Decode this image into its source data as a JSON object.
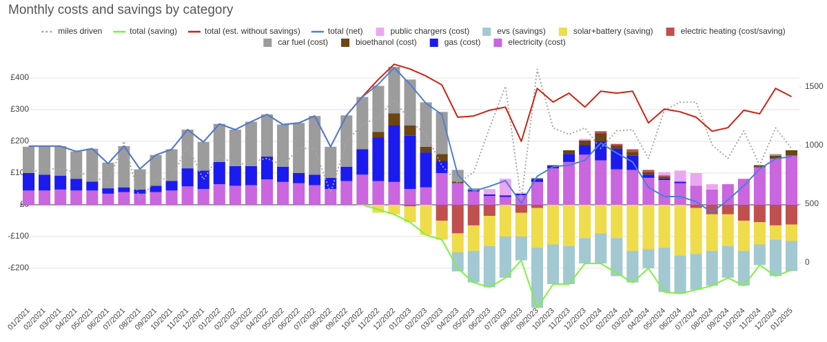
{
  "chart_data": {
    "type": "combo",
    "title": "Monthly costs and savings by category",
    "categories": [
      "01/2021",
      "02/2021",
      "03/2021",
      "04/2021",
      "05/2021",
      "06/2021",
      "07/2021",
      "08/2021",
      "09/2021",
      "10/2021",
      "11/2021",
      "12/2021",
      "01/2022",
      "02/2022",
      "03/2022",
      "04/2022",
      "05/2022",
      "06/2022",
      "07/2022",
      "08/2022",
      "09/2022",
      "10/2022",
      "11/2022",
      "12/2022",
      "01/2023",
      "02/2023",
      "03/2023",
      "04/2023",
      "05/2023",
      "06/2023",
      "07/2023",
      "08/2023",
      "09/2023",
      "10/2023",
      "11/2023",
      "12/2023",
      "01/2024",
      "02/2024",
      "03/2024",
      "04/2024",
      "05/2024",
      "06/2024",
      "07/2024",
      "08/2024",
      "09/2024",
      "10/2024",
      "11/2024",
      "12/2024",
      "01/2025"
    ],
    "ylim": [
      -300,
      450
    ],
    "yticks": [
      {
        "value": -200,
        "label": "-£200"
      },
      {
        "value": -100,
        "label": "-£100"
      },
      {
        "value": 0,
        "label": "£0"
      },
      {
        "value": 100,
        "label": "£100"
      },
      {
        "value": 200,
        "label": "£200"
      },
      {
        "value": 300,
        "label": "£300"
      },
      {
        "value": 400,
        "label": "£400"
      }
    ],
    "y2lim": [
      -318,
      1712
    ],
    "y2ticks": [
      0,
      500,
      1000,
      1500
    ],
    "grid": true,
    "legend": "top",
    "series": [
      {
        "name": "miles driven",
        "kind": "line",
        "axis": "y2",
        "dash": "dotted",
        "color": "#a6a6a6",
        "values": [
          770,
          800,
          800,
          770,
          740,
          680,
          1035,
          535,
          710,
          720,
          1000,
          710,
          920,
          830,
          860,
          890,
          830,
          975,
          975,
          595,
          1035,
          1180,
          1240,
          1390,
          1210,
          1095,
          830,
          680,
          770,
          1150,
          1505,
          535,
          1650,
          1150,
          1095,
          1150,
          975,
          1125,
          1135,
          890,
          1300,
          1370,
          1370,
          1005,
          890,
          1125,
          830,
          1150,
          975
        ]
      },
      {
        "name": "total (saving)",
        "kind": "line",
        "color": "#7ef23c",
        "values": [
          null,
          null,
          null,
          null,
          null,
          null,
          null,
          null,
          null,
          null,
          null,
          null,
          null,
          null,
          null,
          null,
          null,
          null,
          null,
          null,
          null,
          0,
          -15,
          -30,
          -55,
          -95,
          -110,
          -200,
          -245,
          -260,
          -230,
          -175,
          -325,
          -250,
          -250,
          -185,
          -185,
          -215,
          -245,
          -200,
          -275,
          -280,
          -268,
          -255,
          -230,
          -255,
          -190,
          -225,
          -205
        ]
      },
      {
        "name": "total (est. without savings)",
        "kind": "line",
        "color": "#cc2211",
        "values": [
          185,
          185,
          185,
          168,
          177,
          130,
          185,
          113,
          157,
          175,
          237,
          198,
          255,
          237,
          262,
          285,
          253,
          258,
          280,
          183,
          282,
          341,
          395,
          443,
          428,
          406,
          378,
          276,
          280,
          298,
          308,
          200,
          367,
          324,
          352,
          308,
          358,
          352,
          358,
          258,
          302,
          293,
          276,
          232,
          243,
          298,
          287,
          367,
          341
        ]
      },
      {
        "name": "total (net)",
        "kind": "line",
        "color": "#4a7fd6",
        "values": [
          185,
          185,
          185,
          168,
          177,
          130,
          185,
          113,
          157,
          175,
          237,
          198,
          255,
          237,
          262,
          285,
          253,
          258,
          280,
          183,
          282,
          340,
          380,
          432,
          380,
          320,
          285,
          95,
          43,
          58,
          76,
          5,
          90,
          120,
          125,
          140,
          195,
          163,
          135,
          55,
          26,
          26,
          10,
          -24,
          15,
          60,
          113,
          145,
          152
        ]
      },
      {
        "name": "public chargers (cost)",
        "kind": "bar",
        "color": "#eba8f2",
        "values": [
          0,
          0,
          0,
          0,
          0,
          0,
          0,
          0,
          0,
          0,
          0,
          0,
          0,
          0,
          0,
          0,
          0,
          0,
          0,
          0,
          0,
          0,
          0,
          0,
          0,
          0,
          0,
          0,
          0,
          17,
          52,
          3,
          0,
          0,
          0,
          5,
          0,
          0,
          0,
          0,
          10,
          35,
          40,
          17,
          0,
          0,
          0,
          0,
          0
        ]
      },
      {
        "name": "evs (savings)",
        "kind": "bar",
        "color": "#a2c8d2",
        "values": [
          0,
          0,
          0,
          0,
          0,
          0,
          0,
          0,
          0,
          0,
          0,
          0,
          0,
          0,
          0,
          0,
          0,
          0,
          0,
          0,
          0,
          0,
          0,
          0,
          0,
          0,
          0,
          -60,
          -100,
          -130,
          -130,
          -75,
          -190,
          -125,
          -120,
          -80,
          -95,
          -120,
          -100,
          -60,
          -140,
          -120,
          -113,
          -110,
          -100,
          -110,
          -65,
          -115,
          -95
        ]
      },
      {
        "name": "solar+battery (saving)",
        "kind": "bar",
        "color": "#eedc4a",
        "values": [
          0,
          0,
          0,
          0,
          0,
          0,
          0,
          0,
          0,
          0,
          0,
          0,
          0,
          0,
          0,
          0,
          0,
          0,
          0,
          0,
          0,
          -3,
          -25,
          -30,
          -50,
          -95,
          -60,
          -60,
          -80,
          -95,
          -100,
          -75,
          -125,
          -125,
          -130,
          -105,
          -90,
          -105,
          -145,
          -140,
          -135,
          -160,
          -145,
          -115,
          -100,
          -95,
          -70,
          -45,
          -52
        ]
      },
      {
        "name": "electric heating (cost/saving)",
        "kind": "bar",
        "color": "#c0504d",
        "values": [
          0,
          0,
          0,
          0,
          0,
          0,
          0,
          0,
          0,
          0,
          0,
          0,
          0,
          0,
          0,
          0,
          0,
          0,
          0,
          0,
          0,
          0,
          0,
          0,
          -5,
          0,
          -50,
          -90,
          -65,
          -35,
          0,
          -25,
          -10,
          0,
          0,
          0,
          7,
          5,
          8,
          7,
          5,
          0,
          -10,
          -30,
          -30,
          -50,
          -55,
          -65,
          -62
        ]
      },
      {
        "name": "car fuel (cost)",
        "kind": "bar",
        "color": "#9c9c9c",
        "values": [
          83,
          90,
          93,
          86,
          104,
          81,
          130,
          64,
          97,
          100,
          122,
          90,
          120,
          115,
          140,
          133,
          133,
          158,
          185,
          98,
          162,
          165,
          145,
          147,
          145,
          140,
          133,
          37,
          5,
          0,
          0,
          0,
          3,
          0,
          0,
          0,
          0,
          0,
          0,
          0,
          0,
          0,
          0,
          0,
          0,
          0,
          0,
          5,
          0
        ]
      },
      {
        "name": "bioethanol (cost)",
        "kind": "bar",
        "color": "#6b4514",
        "values": [
          0,
          0,
          0,
          0,
          0,
          0,
          0,
          0,
          0,
          0,
          0,
          0,
          0,
          0,
          0,
          0,
          0,
          0,
          0,
          0,
          0,
          0,
          18,
          38,
          32,
          18,
          22,
          5,
          0,
          0,
          0,
          0,
          0,
          2,
          12,
          15,
          25,
          10,
          12,
          8,
          5,
          0,
          0,
          0,
          0,
          0,
          7,
          10,
          17
        ]
      },
      {
        "name": "gas (cost)",
        "kind": "bar",
        "color": "#1b1bf0",
        "values": [
          55,
          50,
          44,
          37,
          28,
          17,
          15,
          13,
          20,
          30,
          57,
          58,
          70,
          62,
          60,
          72,
          48,
          32,
          33,
          35,
          45,
          80,
          137,
          178,
          168,
          110,
          38,
          0,
          5,
          5,
          5,
          5,
          10,
          8,
          25,
          30,
          60,
          65,
          45,
          10,
          5,
          5,
          0,
          0,
          0,
          0,
          0,
          0,
          0
        ]
      },
      {
        "name": "electricity (cost)",
        "kind": "bar",
        "color": "#c966e0",
        "values": [
          45,
          45,
          48,
          45,
          45,
          35,
          40,
          35,
          40,
          45,
          58,
          50,
          65,
          60,
          62,
          80,
          72,
          68,
          62,
          50,
          75,
          95,
          75,
          72,
          50,
          55,
          100,
          68,
          42,
          28,
          25,
          30,
          72,
          115,
          135,
          158,
          140,
          112,
          110,
          85,
          78,
          68,
          60,
          48,
          65,
          82,
          118,
          145,
          155
        ]
      }
    ]
  }
}
